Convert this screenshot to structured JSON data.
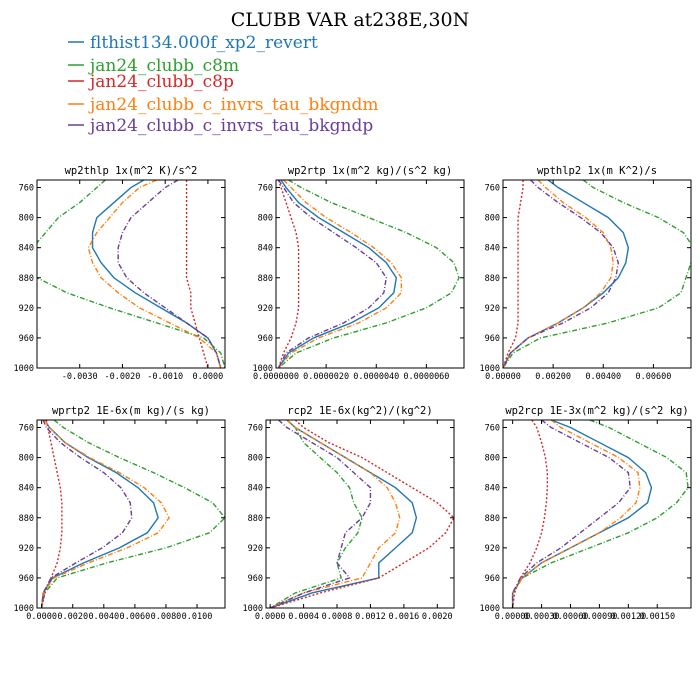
{
  "chart_data": {
    "type": "line",
    "title": "CLUBB VAR at238E,30N",
    "series_styles": [
      {
        "name": "flthist134.000f_xp2_revert",
        "color": "#1f77b4",
        "dash": ""
      },
      {
        "name": "jan24_clubb_c8m",
        "color": "#2ca02c",
        "dash": "5,2,1,2"
      },
      {
        "name": "jan24_clubb_c8p",
        "color": "#d62728",
        "dash": "2,2"
      },
      {
        "name": "jan24_clubb_c_invrs_tau_bkgndm",
        "color": "#ff7f0e",
        "dash": "5,2,1,2"
      },
      {
        "name": "jan24_clubb_c_invrs_tau_bkgndp",
        "color": "#6a3d9a",
        "dash": "5,2,1,2"
      }
    ],
    "y": [
      750,
      760,
      780,
      800,
      820,
      840,
      860,
      880,
      900,
      920,
      940,
      960,
      980,
      1000
    ],
    "ylim": [
      1000,
      750
    ],
    "yticks": [
      760,
      800,
      840,
      880,
      920,
      960,
      1000
    ],
    "panels": [
      {
        "title": "wp2thlp  1x(m^2 K)/s^2",
        "xlim": [
          -0.004,
          0.0004
        ],
        "xticks": [
          -0.003,
          -0.002,
          -0.001,
          0.0
        ],
        "xticklabels": [
          "-0.0030",
          "-0.0020",
          "-0.0010",
          "0.0000"
        ],
        "series": [
          [
            -0.0015,
            -0.0018,
            -0.0022,
            -0.0026,
            -0.0027,
            -0.0027,
            -0.0025,
            -0.0022,
            -0.0017,
            -0.0011,
            -0.0005,
            0.0,
            0.0002,
            0.0003
          ],
          [
            -0.0024,
            -0.0026,
            -0.003,
            -0.0035,
            -0.0038,
            -0.0041,
            -0.0042,
            -0.004,
            -0.0033,
            -0.0023,
            -0.0012,
            -0.0001,
            0.0003,
            0.0004
          ],
          [
            -0.0005,
            -0.0005,
            -0.0005,
            -0.0005,
            -0.0005,
            -0.0005,
            -0.0005,
            -0.0005,
            -0.0004,
            -0.0004,
            -0.0003,
            -0.0002,
            -0.0001,
            0.0
          ],
          [
            -0.0012,
            -0.0016,
            -0.002,
            -0.0023,
            -0.0026,
            -0.0028,
            -0.0027,
            -0.0025,
            -0.0021,
            -0.0016,
            -0.0009,
            -0.0002,
            0.0002,
            0.0003
          ],
          [
            -0.0007,
            -0.001,
            -0.0014,
            -0.0018,
            -0.002,
            -0.0021,
            -0.0021,
            -0.0019,
            -0.0015,
            -0.001,
            -0.0005,
            0.0,
            0.0002,
            0.0003
          ]
        ]
      },
      {
        "title": "wp2rtp  1x(m^2 kg)/(s^2 kg)",
        "xlim": [
          0.0,
          7.5e-06
        ],
        "xticks": [
          0.0,
          2e-06,
          4e-06,
          6e-06
        ],
        "xticklabels": [
          "0.0000000",
          "0.0000020",
          "0.0000040",
          "0.0000060"
        ],
        "series": [
          [
            2e-07,
            4e-07,
            9e-07,
            1.7e-06,
            2.7e-06,
            3.7e-06,
            4.4e-06,
            4.8e-06,
            4.7e-06,
            4.1e-06,
            3e-06,
            1.5e-06,
            5e-07,
            1e-07
          ],
          [
            5e-07,
            1e-06,
            2.2e-06,
            3.7e-06,
            5.2e-06,
            6.4e-06,
            7.1e-06,
            7.3e-06,
            7e-06,
            6e-06,
            4.4e-06,
            2.3e-06,
            8e-07,
            1e-07
          ],
          [
            1e-07,
            2e-07,
            4e-07,
            6e-07,
            8e-07,
            9e-07,
            9e-07,
            9e-07,
            9e-07,
            9e-07,
            8e-07,
            6e-07,
            3e-07,
            1e-07
          ],
          [
            3e-07,
            6e-07,
            1.2e-06,
            2e-06,
            3e-06,
            3.9e-06,
            4.6e-06,
            5e-06,
            5e-06,
            4.4e-06,
            3.3e-06,
            1.7e-06,
            6e-07,
            1e-07
          ],
          [
            1e-07,
            3e-07,
            7e-07,
            1.4e-06,
            2.3e-06,
            3.2e-06,
            4e-06,
            4.4e-06,
            4.3e-06,
            3.7e-06,
            2.7e-06,
            1.3e-06,
            4e-07,
            1e-07
          ]
        ]
      },
      {
        "title": "wpthlp2  1x(m K^2)/s",
        "xlim": [
          0.0,
          0.0075
        ],
        "xticks": [
          0.0,
          0.002,
          0.004,
          0.006
        ],
        "xticklabels": [
          "0.00000",
          "0.00200",
          "0.00400",
          "0.00600"
        ],
        "series": [
          [
            0.0018,
            0.0022,
            0.0032,
            0.0042,
            0.0048,
            0.005,
            0.0049,
            0.0046,
            0.004,
            0.0032,
            0.0022,
            0.001,
            0.0003,
            0.0
          ],
          [
            0.0032,
            0.0036,
            0.0048,
            0.0062,
            0.0072,
            0.0076,
            0.0075,
            0.0073,
            0.0071,
            0.0062,
            0.0042,
            0.0015,
            0.0004,
            0.0
          ],
          [
            0.0008,
            0.0008,
            0.0007,
            0.0006,
            0.0006,
            0.0006,
            0.0006,
            0.0006,
            0.0006,
            0.0006,
            0.0006,
            0.0005,
            0.0002,
            0.0
          ],
          [
            0.0014,
            0.0017,
            0.0024,
            0.0033,
            0.004,
            0.0043,
            0.0044,
            0.0043,
            0.0039,
            0.0032,
            0.0022,
            0.001,
            0.0003,
            0.0
          ],
          [
            0.0011,
            0.0014,
            0.0022,
            0.0031,
            0.0039,
            0.0044,
            0.0046,
            0.0045,
            0.0042,
            0.0035,
            0.0024,
            0.001,
            0.0003,
            0.0
          ]
        ]
      },
      {
        "title": "wprtp2  1E-6x(m kg)/(s kg)",
        "xlim": [
          -0.0003,
          0.0118
        ],
        "xticks": [
          0.0,
          0.002,
          0.004,
          0.006,
          0.008,
          0.01
        ],
        "xticklabels": [
          "0.0000",
          "0.0020",
          "0.0040",
          "0.0060",
          "0.0080",
          "0.0100"
        ],
        "series": [
          [
            0.0002,
            0.0005,
            0.0015,
            0.003,
            0.0048,
            0.0062,
            0.0072,
            0.0075,
            0.0068,
            0.005,
            0.0027,
            0.0007,
            0.0001,
            0.0
          ],
          [
            0.0008,
            0.0014,
            0.003,
            0.005,
            0.0072,
            0.0092,
            0.011,
            0.0118,
            0.0108,
            0.008,
            0.0042,
            0.001,
            0.0002,
            0.0
          ],
          [
            0.0003,
            0.0004,
            0.0006,
            0.0008,
            0.001,
            0.0012,
            0.0013,
            0.0013,
            0.0013,
            0.0012,
            0.001,
            0.0006,
            0.0002,
            0.0
          ],
          [
            0.0002,
            0.0005,
            0.0015,
            0.0031,
            0.005,
            0.0066,
            0.0077,
            0.0082,
            0.0075,
            0.0055,
            0.003,
            0.0008,
            0.0001,
            0.0
          ],
          [
            0.0001,
            0.0003,
            0.0012,
            0.0025,
            0.004,
            0.0051,
            0.0057,
            0.0058,
            0.0052,
            0.0039,
            0.0022,
            0.0006,
            0.0001,
            0.0
          ]
        ]
      },
      {
        "title": "rcp2  1E-6x(kg^2)/(kg^2)",
        "xlim": [
          -5e-05,
          0.0022
        ],
        "xticks": [
          0.0,
          0.0004,
          0.0008,
          0.0012,
          0.0016,
          0.002
        ],
        "xticklabels": [
          "0.0000",
          "0.0004",
          "0.0008",
          "0.0012",
          "0.0016",
          "0.0020"
        ],
        "series": [
          [
            0.0002,
            0.0003,
            0.0006,
            0.0009,
            0.0012,
            0.0015,
            0.0017,
            0.00175,
            0.0017,
            0.0015,
            0.0013,
            0.0013,
            0.0005,
            0.0
          ],
          [
            0.0002,
            0.0003,
            0.0004,
            0.0006,
            0.0008,
            0.00095,
            0.001,
            0.0011,
            0.00105,
            0.0009,
            0.0008,
            0.00085,
            0.0003,
            0.0
          ],
          [
            0.0003,
            0.0004,
            0.0007,
            0.0011,
            0.0014,
            0.0017,
            0.002,
            0.0022,
            0.0021,
            0.0019,
            0.0016,
            0.0013,
            0.0006,
            0.0
          ],
          [
            0.0002,
            0.0003,
            0.0006,
            0.0009,
            0.0012,
            0.0014,
            0.0015,
            0.00155,
            0.0015,
            0.0013,
            0.0012,
            0.0011,
            0.0004,
            0.0
          ],
          [
            0.0001,
            0.0002,
            0.0005,
            0.0008,
            0.001,
            0.0012,
            0.0012,
            0.0011,
            0.0009,
            0.00085,
            0.0008,
            0.00095,
            0.0004,
            0.0
          ]
        ]
      },
      {
        "title": "wp2rcp  1E-3x(m^2 kg)/(s^2 kg)",
        "xlim": [
          -0.0001,
          0.00185
        ],
        "xticks": [
          0.0,
          0.0003,
          0.0006,
          0.0009,
          0.0012,
          0.0015
        ],
        "xticklabels": [
          "0.00000",
          "0.00030",
          "0.00060",
          "0.00090",
          "0.00120",
          "0.00150"
        ],
        "series": [
          [
            0.0004,
            0.0006,
            0.0009,
            0.0012,
            0.00138,
            0.00144,
            0.0014,
            0.0012,
            0.0009,
            0.0006,
            0.0003,
            0.0001,
            0.0,
            0.0
          ],
          [
            0.0008,
            0.001,
            0.0013,
            0.0016,
            0.0018,
            0.00182,
            0.0017,
            0.0015,
            0.0012,
            0.0008,
            0.0004,
            0.0001,
            0.0,
            0.0
          ],
          [
            0.0002,
            0.00025,
            0.0003,
            0.00034,
            0.00036,
            0.00036,
            0.00035,
            0.00033,
            0.0003,
            0.00025,
            0.00018,
            8e-05,
            2e-05,
            0.0
          ],
          [
            0.0004,
            0.0005,
            0.0008,
            0.0011,
            0.0013,
            0.00132,
            0.00128,
            0.00112,
            0.0009,
            0.0006,
            0.0003,
            0.0001,
            0.0,
            0.0
          ],
          [
            0.0003,
            0.0004,
            0.0007,
            0.001,
            0.0012,
            0.00122,
            0.0011,
            0.0009,
            0.0007,
            0.0005,
            0.00025,
            8e-05,
            0.0,
            0.0
          ]
        ]
      }
    ]
  }
}
